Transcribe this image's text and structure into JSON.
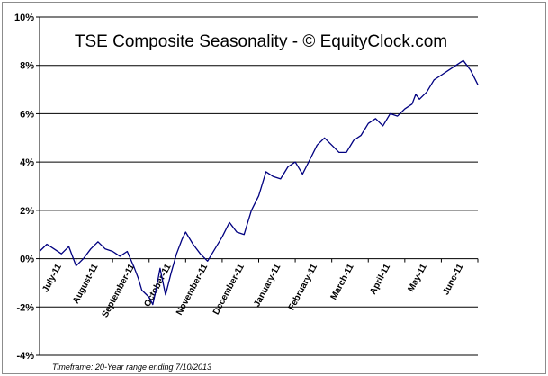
{
  "chart_data": {
    "type": "line",
    "title": "TSE Composite Seasonality - © EquityClock.com",
    "footnote": "Timeframe: 20-Year range ending 7/10/2013",
    "xlabel": "",
    "ylabel": "",
    "ylim": [
      -4,
      10
    ],
    "yticks": [
      "10%",
      "8%",
      "6%",
      "4%",
      "2%",
      "0%",
      "-2%",
      "-4%"
    ],
    "ytick_values": [
      10,
      8,
      6,
      4,
      2,
      0,
      -2,
      -4
    ],
    "grid": "horizontal",
    "legend": "none",
    "line_color": "#000080",
    "categories": [
      "July-11",
      "August-11",
      "September-11",
      "October-11",
      "November-11",
      "December-11",
      "January-11",
      "February-11",
      "March-11",
      "April-11",
      "May-11",
      "June-11"
    ],
    "series": [
      {
        "x": [
          0,
          0.2,
          0.4,
          0.6,
          0.8,
          1.0,
          1.2,
          1.4,
          1.6,
          1.8,
          2.0,
          2.2,
          2.4,
          2.6,
          2.7,
          2.8,
          3.0,
          3.1,
          3.2,
          3.3,
          3.45,
          3.6,
          3.75,
          3.9,
          4.0,
          4.2,
          4.4,
          4.6,
          4.8,
          5.0,
          5.2,
          5.4,
          5.6,
          5.7,
          5.8,
          6.0,
          6.2,
          6.4,
          6.6,
          6.8,
          7.0,
          7.2,
          7.4,
          7.6,
          7.8,
          8.0,
          8.2,
          8.4,
          8.6,
          8.8,
          9.0,
          9.2,
          9.4,
          9.6,
          9.8,
          10.0,
          10.2,
          10.3,
          10.4,
          10.6,
          10.8,
          11.0,
          11.2,
          11.4,
          11.6,
          11.8,
          12.0
        ],
        "y": [
          0.3,
          0.6,
          0.4,
          0.2,
          0.5,
          -0.3,
          0.0,
          0.4,
          0.7,
          0.4,
          0.3,
          0.1,
          0.3,
          -0.4,
          -0.8,
          -1.3,
          -1.6,
          -1.9,
          -1.2,
          -0.4,
          -1.5,
          -0.6,
          0.2,
          0.8,
          1.1,
          0.6,
          0.2,
          -0.1,
          0.4,
          0.9,
          1.5,
          1.1,
          1.0,
          1.5,
          2.0,
          2.6,
          3.6,
          3.4,
          3.3,
          3.8,
          4.0,
          3.5,
          4.1,
          4.7,
          5.0,
          4.7,
          4.4,
          4.4,
          4.9,
          5.1,
          5.6,
          5.8,
          5.5,
          6.0,
          5.9,
          6.2,
          6.4,
          6.8,
          6.6,
          6.9,
          7.4,
          7.6,
          7.8,
          8.0,
          8.2,
          7.8,
          7.2
        ]
      }
    ]
  }
}
